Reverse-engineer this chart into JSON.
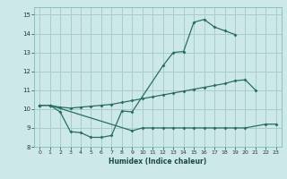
{
  "xlabel": "Humidex (Indice chaleur)",
  "bg_color": "#cce8e8",
  "grid_color": "#aacccc",
  "line_color": "#2a6e62",
  "xlim": [
    -0.5,
    23.5
  ],
  "ylim": [
    8,
    15.4
  ],
  "yticks": [
    8,
    9,
    10,
    11,
    12,
    13,
    14,
    15
  ],
  "xticks": [
    0,
    1,
    2,
    3,
    4,
    5,
    6,
    7,
    8,
    9,
    10,
    11,
    12,
    13,
    14,
    15,
    16,
    17,
    18,
    19,
    20,
    21,
    22,
    23
  ],
  "line1_x": [
    0,
    1,
    2,
    3,
    4,
    5,
    6,
    7,
    8,
    9,
    12,
    13,
    14,
    15,
    16,
    17,
    18,
    19
  ],
  "line1_y": [
    10.2,
    10.2,
    9.85,
    8.8,
    8.75,
    8.5,
    8.5,
    8.6,
    9.9,
    9.85,
    12.3,
    13.0,
    13.05,
    14.6,
    14.75,
    14.35,
    14.15,
    13.95
  ],
  "line2_x": [
    0,
    1,
    2,
    3,
    4,
    5,
    6,
    7,
    8,
    9,
    10,
    11,
    12,
    13,
    14,
    15,
    16,
    17,
    18,
    19,
    20,
    21
  ],
  "line2_y": [
    10.2,
    10.2,
    10.1,
    10.05,
    10.1,
    10.15,
    10.2,
    10.25,
    10.35,
    10.45,
    10.55,
    10.65,
    10.75,
    10.85,
    10.95,
    11.05,
    11.15,
    11.25,
    11.35,
    11.5,
    11.55,
    11.0
  ],
  "line3_x": [
    0,
    1,
    9,
    10,
    11,
    12,
    13,
    14,
    15,
    16,
    17,
    18,
    19,
    20,
    22,
    23
  ],
  "line3_y": [
    10.2,
    10.2,
    8.85,
    9.0,
    9.0,
    9.0,
    9.0,
    9.0,
    9.0,
    9.0,
    9.0,
    9.0,
    9.0,
    9.0,
    9.2,
    9.2
  ]
}
